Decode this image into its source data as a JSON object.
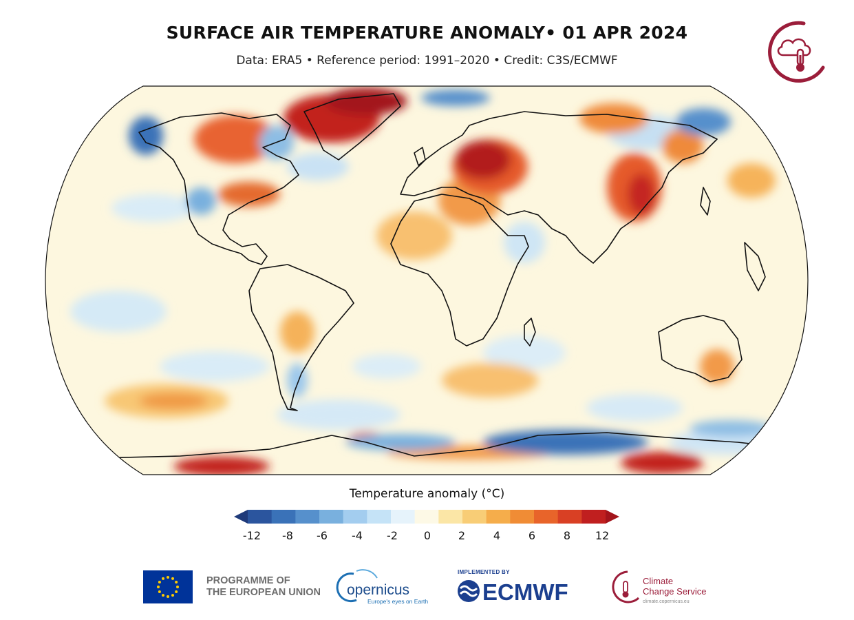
{
  "header": {
    "title": "SURFACE AIR TEMPERATURE ANOMALY• 01 APR 2024",
    "subtitle": "Data: ERA5 • Reference period: 1991–2020 • Credit: C3S/ECMWF"
  },
  "colorbar": {
    "title": "Temperature anomaly (°C)",
    "ticks": [
      "-12",
      "-8",
      "-6",
      "-4",
      "-2",
      "0",
      "2",
      "4",
      "6",
      "8",
      "12"
    ],
    "colors": [
      "#1f3a7a",
      "#2b559e",
      "#3a72b8",
      "#5690cc",
      "#79b0de",
      "#a3cdef",
      "#c5e3f7",
      "#e6f3fb",
      "#fdf9e6",
      "#fbe6a6",
      "#f8cd76",
      "#f5ad4b",
      "#f08c35",
      "#e8642a",
      "#d94024",
      "#c01f1f",
      "#a3141b"
    ]
  },
  "footer": {
    "eu_line1": "PROGRAMME OF",
    "eu_line2": "THE EUROPEAN UNION",
    "copernicus_name": "opernicus",
    "copernicus_tagline": "Europe's eyes on Earth",
    "ecmwf_implemented": "IMPLEMENTED BY",
    "ecmwf_name": "ECMWF",
    "c3s_line1": "Climate",
    "c3s_line2": "Change Service",
    "c3s_url": "climate.copernicus.eu"
  },
  "colors": {
    "c3s_brand": "#9b1d3a",
    "ecmwf_brand": "#1b3f8f",
    "eu_blue": "#003399",
    "eu_gold": "#ffcc00"
  }
}
